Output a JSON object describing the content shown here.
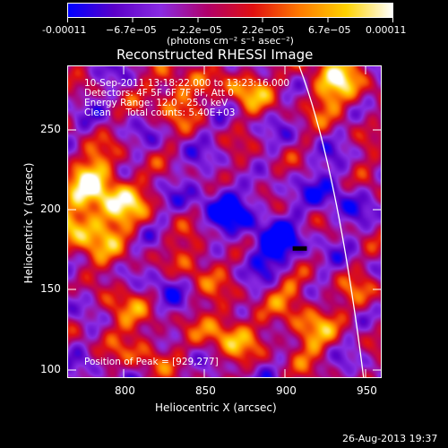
{
  "colorbar": {
    "tick_labels": [
      "-0.00011",
      "−6.7e−05",
      "−2.2e−05",
      "2.2e−05",
      "6.7e−05",
      "0.00011"
    ],
    "units": "(photons cm⁻² s⁻¹ asec⁻²)",
    "colors": [
      "#0000ff",
      "#5b00c8",
      "#8a2be2",
      "#b0006a",
      "#e01010",
      "#ff7a00",
      "#ffd200",
      "#ffffff"
    ]
  },
  "plot": {
    "title": "Reconstructed RHESSI Image",
    "xlabel": "Heliocentric X (arcsec)",
    "ylabel": "Heliocentric Y (arcsec)",
    "x_ticks": [
      "800",
      "850",
      "900",
      "950"
    ],
    "y_ticks": [
      "100",
      "150",
      "200",
      "250"
    ],
    "info_lines": [
      "10-Sep-2011 13:18:22.000 to 13:23:16.000",
      "Detectors: 4F 5F 6F 7F 8F, Att 0",
      "Energy Range: 12.0 - 25.0 keV",
      "Clean     Total counts: 5.40E+03"
    ],
    "peak_label": "Position of Peak = [929,277]"
  },
  "footer": {
    "timestamp": "26-Aug-2013 19:37"
  },
  "chart_data": {
    "type": "heatmap",
    "title": "Reconstructed RHESSI Image",
    "xlabel": "Heliocentric X (arcsec)",
    "ylabel": "Heliocentric Y (arcsec)",
    "xlim": [
      765,
      960
    ],
    "ylim": [
      95,
      290
    ],
    "value_range": [
      -0.00011,
      0.00011
    ],
    "colorbar_ticks": [
      -0.00011,
      -6.7e-05,
      -2.2e-05,
      2.2e-05,
      6.7e-05,
      0.00011
    ],
    "peak_position": [
      929,
      277
    ]
  }
}
